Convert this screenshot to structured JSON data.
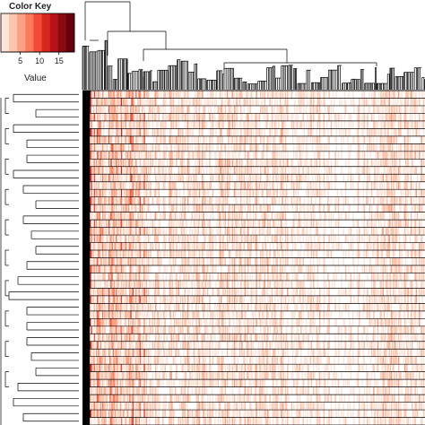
{
  "chart_data": {
    "type": "heatmap",
    "title": "",
    "xlabel": "",
    "ylabel": "",
    "row_count": 44,
    "column_count": 330,
    "row_dendrogram": true,
    "column_dendrogram": true,
    "legend_placement": "top-left",
    "color_key": {
      "title": "Color Key",
      "axis_label": "Value",
      "ticks": [
        5,
        10,
        15
      ],
      "range": [
        0,
        19
      ],
      "colors": [
        "#fee5d9",
        "#fcc5ae",
        "#fca082",
        "#fb7a5b",
        "#f24a36",
        "#d7261e",
        "#b5121b",
        "#8a0a12",
        "#67000d"
      ]
    },
    "first_column_value": 19,
    "column_profile": [
      {
        "x_range": [
          1,
          8
        ],
        "mean_value": 7
      },
      {
        "x_range": [
          9,
          60
        ],
        "mean_value": 4
      },
      {
        "x_range": [
          61,
          200
        ],
        "mean_value": 2
      },
      {
        "x_range": [
          201,
          280
        ],
        "mean_value": 1.5
      },
      {
        "x_range": [
          281,
          330
        ],
        "mean_value": 2
      }
    ],
    "colors": {
      "background": "#ffffff",
      "cell_border": "#000000",
      "dendrogram": "#000000"
    }
  }
}
